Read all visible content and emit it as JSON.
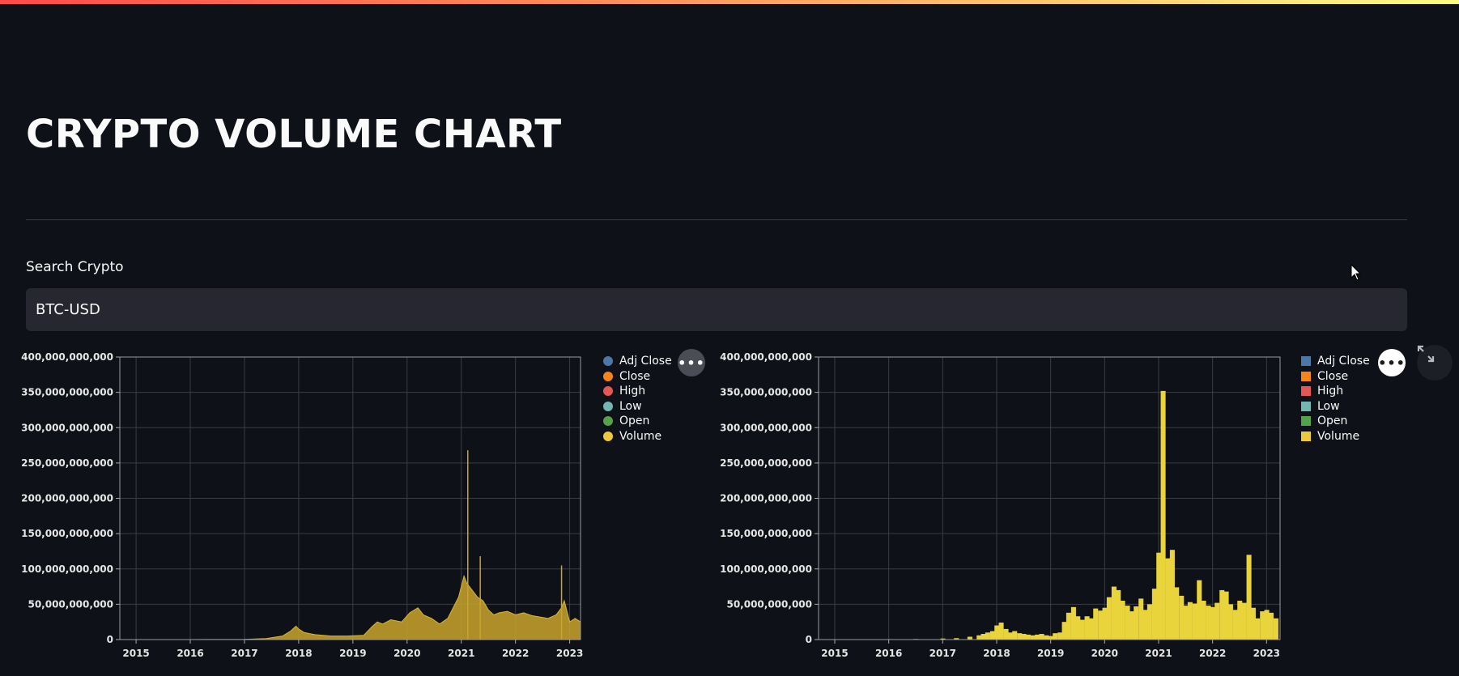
{
  "page": {
    "title": "CRYPTO VOLUME CHART"
  },
  "search": {
    "label": "Search Crypto",
    "value": "BTC-USD"
  },
  "colors": {
    "accent": "#ff4b4b",
    "background": "#0e1117",
    "input_bg": "#262730",
    "volume": "#e8c93a"
  },
  "charts": [
    {
      "legend_style": "circle",
      "legend": [
        {
          "label": "Adj Close",
          "color": "#4c78a8"
        },
        {
          "label": "Close",
          "color": "#f58518"
        },
        {
          "label": "High",
          "color": "#e45756"
        },
        {
          "label": "Low",
          "color": "#72b7b2"
        },
        {
          "label": "Open",
          "color": "#54a24b"
        },
        {
          "label": "Volume",
          "color": "#eeca3b"
        }
      ],
      "menu_icon": "more-horizontal-icon"
    },
    {
      "legend_style": "square",
      "legend": [
        {
          "label": "Adj Close",
          "color": "#4c78a8"
        },
        {
          "label": "Close",
          "color": "#f58518"
        },
        {
          "label": "High",
          "color": "#e45756"
        },
        {
          "label": "Low",
          "color": "#72b7b2"
        },
        {
          "label": "Open",
          "color": "#54a24b"
        },
        {
          "label": "Volume",
          "color": "#eeca3b"
        }
      ],
      "menu_icon": "more-horizontal-icon",
      "expand_icon": "fullscreen-icon"
    }
  ],
  "chart_data": [
    {
      "type": "area",
      "title": "",
      "xlabel": "",
      "ylabel": "",
      "x_ticks": [
        "2015",
        "2016",
        "2017",
        "2018",
        "2019",
        "2020",
        "2021",
        "2022",
        "2023"
      ],
      "y_ticks": [
        "0",
        "50,000,000,000",
        "100,000,000,000",
        "150,000,000,000",
        "200,000,000,000",
        "250,000,000,000",
        "300,000,000,000",
        "350,000,000,000",
        "400,000,000,000"
      ],
      "xlim": [
        2014.7,
        2023.2
      ],
      "ylim": [
        0,
        400000000000
      ],
      "grid": true,
      "legend_position": "right",
      "series": [
        {
          "name": "Volume",
          "x": [
            2014.7,
            2015.0,
            2016.0,
            2017.0,
            2017.4,
            2017.7,
            2017.85,
            2017.95,
            2018.0,
            2018.1,
            2018.3,
            2018.6,
            2018.9,
            2019.2,
            2019.35,
            2019.45,
            2019.55,
            2019.7,
            2019.9,
            2020.05,
            2020.2,
            2020.3,
            2020.45,
            2020.6,
            2020.75,
            2020.85,
            2020.95,
            2021.0,
            2021.05,
            2021.1,
            2021.2,
            2021.3,
            2021.4,
            2021.5,
            2021.6,
            2021.7,
            2021.85,
            2022.0,
            2022.15,
            2022.3,
            2022.45,
            2022.6,
            2022.75,
            2022.85,
            2022.9,
            2022.95,
            2023.0,
            2023.1,
            2023.2
          ],
          "values": [
            0,
            10000000,
            50000000,
            300000000,
            1500000000,
            5000000000,
            12000000000,
            19000000000,
            15000000000,
            10000000000,
            7000000000,
            5000000000,
            5000000000,
            6000000000,
            18000000000,
            25000000000,
            22000000000,
            28000000000,
            25000000000,
            38000000000,
            45000000000,
            35000000000,
            30000000000,
            22000000000,
            30000000000,
            45000000000,
            60000000000,
            75000000000,
            90000000000,
            80000000000,
            70000000000,
            60000000000,
            55000000000,
            42000000000,
            35000000000,
            38000000000,
            40000000000,
            35000000000,
            38000000000,
            34000000000,
            32000000000,
            30000000000,
            35000000000,
            45000000000,
            55000000000,
            40000000000,
            25000000000,
            30000000000,
            25000000000
          ]
        },
        {
          "name": "Volume spikes",
          "x": [
            2021.12,
            2021.35,
            2022.85
          ],
          "values": [
            268000000000,
            118000000000,
            105000000000
          ]
        }
      ]
    },
    {
      "type": "bar",
      "title": "",
      "xlabel": "",
      "ylabel": "",
      "x_ticks": [
        "2015",
        "2016",
        "2017",
        "2018",
        "2019",
        "2020",
        "2021",
        "2022",
        "2023"
      ],
      "y_ticks": [
        "0",
        "50,000,000,000",
        "100,000,000,000",
        "150,000,000,000",
        "200,000,000,000",
        "250,000,000,000",
        "300,000,000,000",
        "350,000,000,000",
        "400,000,000,000"
      ],
      "xlim": [
        2014.7,
        2023.25
      ],
      "ylim": [
        0,
        400000000000
      ],
      "grid": true,
      "legend_position": "right",
      "bar_width_years": 0.0833,
      "series": [
        {
          "name": "Volume",
          "x": [
            2015.0,
            2015.5,
            2016.0,
            2016.5,
            2017.0,
            2017.25,
            2017.5,
            2017.67,
            2017.75,
            2017.83,
            2017.92,
            2018.0,
            2018.08,
            2018.17,
            2018.25,
            2018.33,
            2018.42,
            2018.5,
            2018.58,
            2018.67,
            2018.75,
            2018.83,
            2018.92,
            2019.0,
            2019.08,
            2019.17,
            2019.25,
            2019.33,
            2019.42,
            2019.5,
            2019.58,
            2019.67,
            2019.75,
            2019.83,
            2019.92,
            2020.0,
            2020.08,
            2020.17,
            2020.25,
            2020.33,
            2020.42,
            2020.5,
            2020.58,
            2020.67,
            2020.75,
            2020.83,
            2020.92,
            2021.0,
            2021.08,
            2021.17,
            2021.25,
            2021.33,
            2021.42,
            2021.5,
            2021.58,
            2021.67,
            2021.75,
            2021.83,
            2021.92,
            2022.0,
            2022.08,
            2022.17,
            2022.25,
            2022.33,
            2022.42,
            2022.5,
            2022.58,
            2022.67,
            2022.75,
            2022.83,
            2022.92,
            2023.0,
            2023.08,
            2023.17
          ],
          "values": [
            500000000,
            400000000,
            600000000,
            800000000,
            1500000000,
            2000000000,
            4000000000,
            6000000000,
            8000000000,
            10000000000,
            12000000000,
            20000000000,
            24000000000,
            15000000000,
            10000000000,
            12000000000,
            9000000000,
            8000000000,
            7000000000,
            6000000000,
            7000000000,
            8000000000,
            6000000000,
            5000000000,
            9000000000,
            10000000000,
            25000000000,
            38000000000,
            46000000000,
            33000000000,
            28000000000,
            33000000000,
            30000000000,
            44000000000,
            41000000000,
            45000000000,
            60000000000,
            75000000000,
            70000000000,
            55000000000,
            48000000000,
            40000000000,
            47000000000,
            58000000000,
            42000000000,
            50000000000,
            72000000000,
            123000000000,
            352000000000,
            115000000000,
            127000000000,
            74000000000,
            62000000000,
            48000000000,
            53000000000,
            51000000000,
            84000000000,
            55000000000,
            48000000000,
            46000000000,
            52000000000,
            70000000000,
            68000000000,
            50000000000,
            42000000000,
            55000000000,
            52000000000,
            120000000000,
            45000000000,
            30000000000,
            40000000000,
            42000000000,
            38000000000,
            30000000000
          ]
        }
      ]
    }
  ]
}
